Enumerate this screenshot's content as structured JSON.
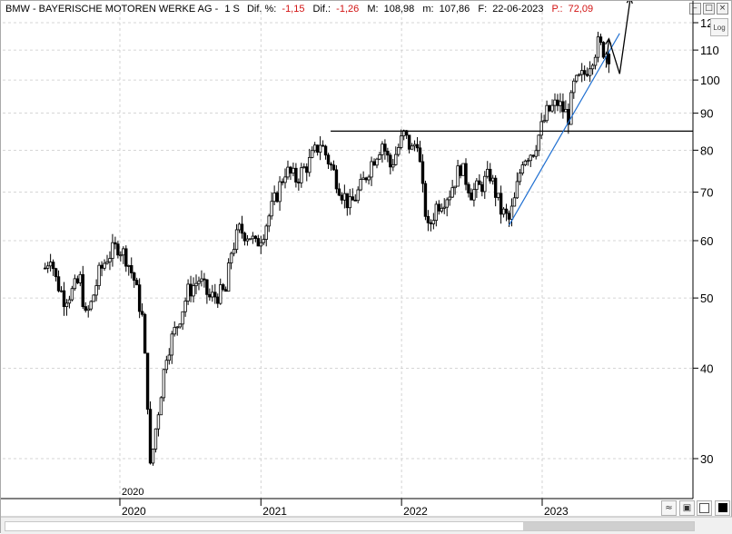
{
  "header": {
    "symbol": "BMW - BAYERISCHE MOTOREN WERKE AG -",
    "timeframe": "1 S",
    "dif_pct_label": "Dif. %:",
    "dif_pct_value": "-1,15",
    "dif_label": "Dif.:",
    "dif_value": "-1,26",
    "max_label": "M:",
    "max_value": "108,98",
    "min_label": "m:",
    "min_value": "107,86",
    "date_label": "F:",
    "date_value": "22-06-2023",
    "price_label": "P.:",
    "price_value": "72,09"
  },
  "buttons": {
    "log_label": "Log"
  },
  "colors": {
    "header_red": "#d21414",
    "trendline": "#1f6fd1",
    "candle": "#000000",
    "grid": "#c8c8c8"
  },
  "chart_data": {
    "type": "candlestick",
    "y_scale": "log",
    "ylim": [
      27,
      124
    ],
    "y_ticks": [
      30,
      40,
      50,
      60,
      70,
      80,
      90,
      100,
      110,
      120
    ],
    "x_ticks": [
      "2020",
      "2021",
      "2022",
      "2023"
    ],
    "x_year_marker": "2020",
    "grid": true,
    "weekly_close_points": [
      [
        "2019-06-21",
        55
      ],
      [
        "2019-07-05",
        57.5
      ],
      [
        "2019-07-19",
        53
      ],
      [
        "2019-08-09",
        50
      ],
      [
        "2019-08-30",
        51
      ],
      [
        "2019-09-20",
        53
      ],
      [
        "2019-10-04",
        47
      ],
      [
        "2019-10-18",
        49
      ],
      [
        "2019-11-08",
        54
      ],
      [
        "2019-11-29",
        57
      ],
      [
        "2019-12-27",
        59
      ],
      [
        "2020-01-17",
        57
      ],
      [
        "2020-02-07",
        53
      ],
      [
        "2020-02-28",
        47
      ],
      [
        "2020-03-13",
        36
      ],
      [
        "2020-03-20",
        29
      ],
      [
        "2020-04-03",
        33
      ],
      [
        "2020-05-01",
        42
      ],
      [
        "2020-05-29",
        46
      ],
      [
        "2020-06-26",
        51
      ],
      [
        "2020-07-24",
        53
      ],
      [
        "2020-08-21",
        50
      ],
      [
        "2020-10-02",
        51
      ],
      [
        "2020-10-16",
        58
      ],
      [
        "2020-11-06",
        62
      ],
      [
        "2020-12-04",
        61
      ],
      [
        "2020-12-18",
        59
      ],
      [
        "2021-01-08",
        62
      ],
      [
        "2021-02-05",
        68
      ],
      [
        "2021-03-05",
        75
      ],
      [
        "2021-04-02",
        73
      ],
      [
        "2021-05-07",
        77
      ],
      [
        "2021-06-04",
        82
      ],
      [
        "2021-07-02",
        76
      ],
      [
        "2021-07-30",
        70
      ],
      [
        "2021-08-20",
        67
      ],
      [
        "2021-09-17",
        71
      ],
      [
        "2021-10-15",
        77
      ],
      [
        "2021-11-12",
        82
      ],
      [
        "2021-12-03",
        76
      ],
      [
        "2022-01-07",
        84
      ],
      [
        "2022-01-28",
        80
      ],
      [
        "2022-02-11",
        83
      ],
      [
        "2022-02-25",
        70
      ],
      [
        "2022-03-11",
        62
      ],
      [
        "2022-04-01",
        67
      ],
      [
        "2022-05-06",
        70
      ],
      [
        "2022-06-03",
        76
      ],
      [
        "2022-07-01",
        70
      ],
      [
        "2022-07-22",
        71
      ],
      [
        "2022-08-19",
        74
      ],
      [
        "2022-09-16",
        66
      ],
      [
        "2022-10-07",
        64
      ],
      [
        "2022-10-21",
        68
      ],
      [
        "2022-11-11",
        78
      ],
      [
        "2022-12-09",
        80
      ],
      [
        "2023-01-13",
        90
      ],
      [
        "2023-02-10",
        93
      ],
      [
        "2023-03-10",
        89
      ],
      [
        "2023-03-24",
        98
      ],
      [
        "2023-04-21",
        102
      ],
      [
        "2023-05-12",
        108
      ],
      [
        "2023-05-26",
        112
      ],
      [
        "2023-06-09",
        110
      ],
      [
        "2023-06-23",
        108.5
      ]
    ],
    "resistance_level": 85,
    "trendline": [
      [
        "2022-10-07",
        63
      ],
      [
        "2023-07-21",
        116
      ]
    ],
    "projection_arrows": [
      [
        [
          "2023-06-16",
          104
        ],
        [
          "2023-06-23",
          114
        ]
      ],
      [
        [
          "2023-06-23",
          114
        ],
        [
          "2023-07-21",
          102
        ],
        [
          "2023-08-18",
          130
        ]
      ]
    ]
  }
}
